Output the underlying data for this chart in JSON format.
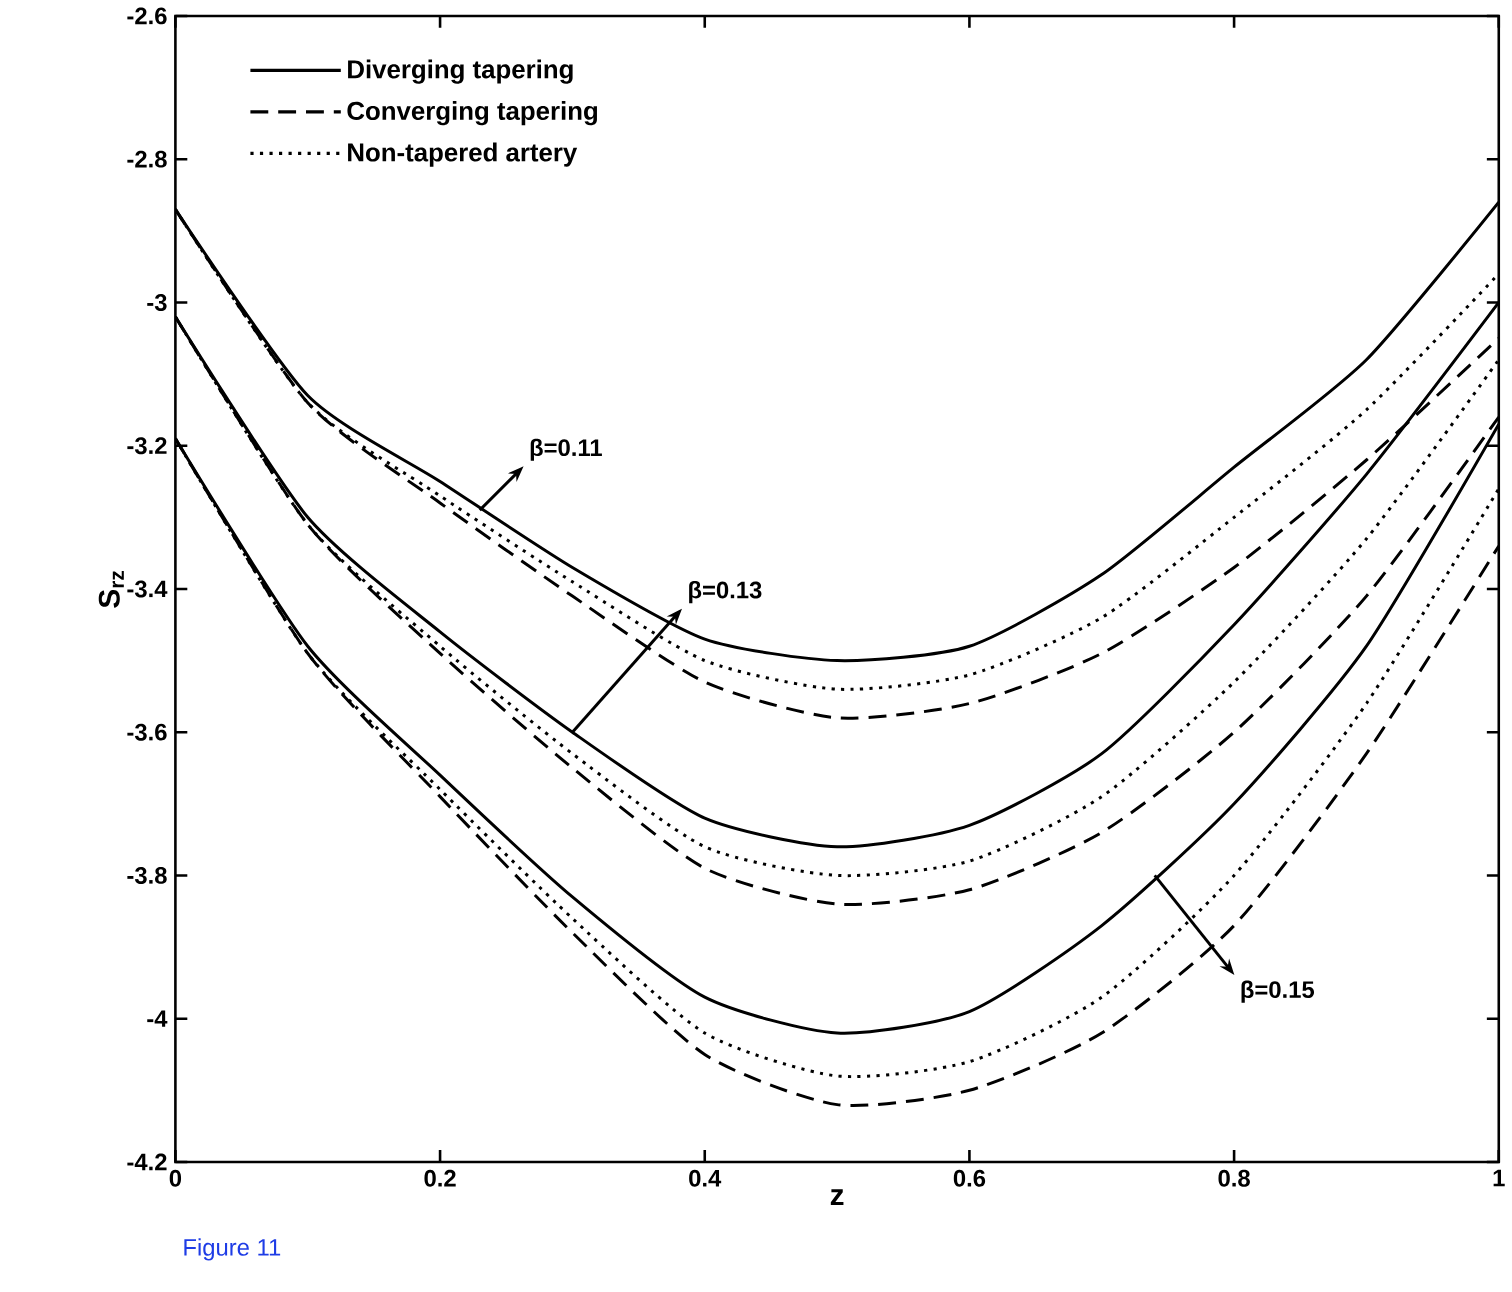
{
  "chart_data": {
    "type": "line",
    "xlabel": "z",
    "ylabel": "S$_{rz}$",
    "x": [
      0,
      0.1,
      0.2,
      0.3,
      0.4,
      0.5,
      0.6,
      0.7,
      0.8,
      0.9,
      1
    ],
    "xlim": [
      0,
      1
    ],
    "xticks": [
      0,
      0.2,
      0.4,
      0.6,
      0.8,
      1
    ],
    "ylim": [
      -4.2,
      -2.6
    ],
    "yticks": [
      -4.2,
      -4,
      -3.8,
      -3.6,
      -3.4,
      -3.2,
      -3,
      -2.8,
      -2.6
    ],
    "legend": "top left",
    "grid": false,
    "marker": "none",
    "series": [
      {
        "name": "Diverging tapering",
        "color": "#000000",
        "line_style": "solid",
        "values": [
          -2.87,
          -3.13,
          -3.25,
          -3.37,
          -3.47,
          -3.5,
          -3.48,
          -3.38,
          -3.23,
          -3.08,
          -2.86
        ]
      },
      {
        "name": "Converging tapering",
        "color": "#000000",
        "line_style": "dashed",
        "values": [
          -2.87,
          -3.14,
          -3.28,
          -3.41,
          -3.53,
          -3.58,
          -3.56,
          -3.49,
          -3.37,
          -3.22,
          -3.05
        ]
      },
      {
        "name": "Non-tapered artery",
        "color": "#000000",
        "line_style": "dotted",
        "values": [
          -2.87,
          -3.14,
          -3.27,
          -3.39,
          -3.5,
          -3.54,
          -3.52,
          -3.44,
          -3.3,
          -3.15,
          -2.96
        ]
      },
      {
        "color": "#000000",
        "line_style": "solid",
        "values": [
          -3.02,
          -3.3,
          -3.46,
          -3.6,
          -3.72,
          -3.76,
          -3.73,
          -3.63,
          -3.45,
          -3.24,
          -3.0
        ]
      },
      {
        "color": "#000000",
        "line_style": "dashed",
        "values": [
          -3.02,
          -3.31,
          -3.49,
          -3.65,
          -3.79,
          -3.84,
          -3.82,
          -3.74,
          -3.6,
          -3.41,
          -3.16
        ]
      },
      {
        "color": "#000000",
        "line_style": "dotted",
        "values": [
          -3.02,
          -3.31,
          -3.48,
          -3.63,
          -3.76,
          -3.8,
          -3.78,
          -3.69,
          -3.53,
          -3.33,
          -3.08
        ]
      },
      {
        "color": "#000000",
        "line_style": "solid",
        "values": [
          -3.19,
          -3.48,
          -3.66,
          -3.83,
          -3.97,
          -4.02,
          -3.99,
          -3.87,
          -3.7,
          -3.48,
          -3.17
        ]
      },
      {
        "color": "#000000",
        "line_style": "dashed",
        "values": [
          -3.19,
          -3.49,
          -3.69,
          -3.88,
          -4.05,
          -4.12,
          -4.1,
          -4.02,
          -3.87,
          -3.63,
          -3.34
        ]
      },
      {
        "color": "#000000",
        "line_style": "dotted",
        "values": [
          -3.19,
          -3.49,
          -3.68,
          -3.86,
          -4.02,
          -4.08,
          -4.06,
          -3.97,
          -3.8,
          -3.56,
          -3.26
        ]
      }
    ],
    "annotations": [
      {
        "text": "β=0.11",
        "x": 0.23,
        "y": -3.29
      },
      {
        "text": "β=0.13",
        "x": 0.3,
        "y": -3.6
      },
      {
        "text": "β=0.15",
        "x": 0.74,
        "y": -3.8
      },
      "Figure 11"
    ]
  }
}
